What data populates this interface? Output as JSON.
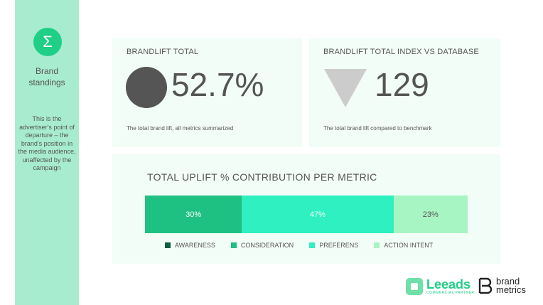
{
  "sidebar": {
    "icon": "sigma-icon",
    "title_line1": "Brand",
    "title_line2": "standings",
    "description": "This is the advertiser's point of departure – the brand's position in the media audience, unaffected by the campaign"
  },
  "card_total": {
    "title": "BRANDLIFT TOTAL",
    "value": "52.7%",
    "note": "The total brand lift, all metrics summarized"
  },
  "card_index": {
    "title": "BRANDLIFT TOTAL INDEX VS DATABASE",
    "value": "129",
    "note": "The total brand lift compared to benchmark"
  },
  "contribution": {
    "title": "TOTAL UPLIFT % CONTRIBUTION PER METRIC",
    "segments": [
      {
        "label": "30%",
        "value": 30,
        "color": "#1fc183",
        "text_color": "#ffffff"
      },
      {
        "label": "47%",
        "value": 47,
        "color": "#2ef0c1",
        "text_color": "#ffffff"
      },
      {
        "label": "23%",
        "value": 23,
        "color": "#a8f5c4",
        "text_color": "#555555"
      }
    ],
    "legend": [
      {
        "label": "AWARENESS",
        "color": "#0f5e43"
      },
      {
        "label": "CONSIDERATION",
        "color": "#1fc183"
      },
      {
        "label": "PREFERENS",
        "color": "#2ef0c1"
      },
      {
        "label": "ACTION INTENT",
        "color": "#a8f5c4"
      }
    ]
  },
  "logos": {
    "leeads_name": "Leeads",
    "leeads_sub": "COMMERCIAL PARTNER",
    "bm_line1": "brand",
    "bm_line2": "metrics"
  }
}
